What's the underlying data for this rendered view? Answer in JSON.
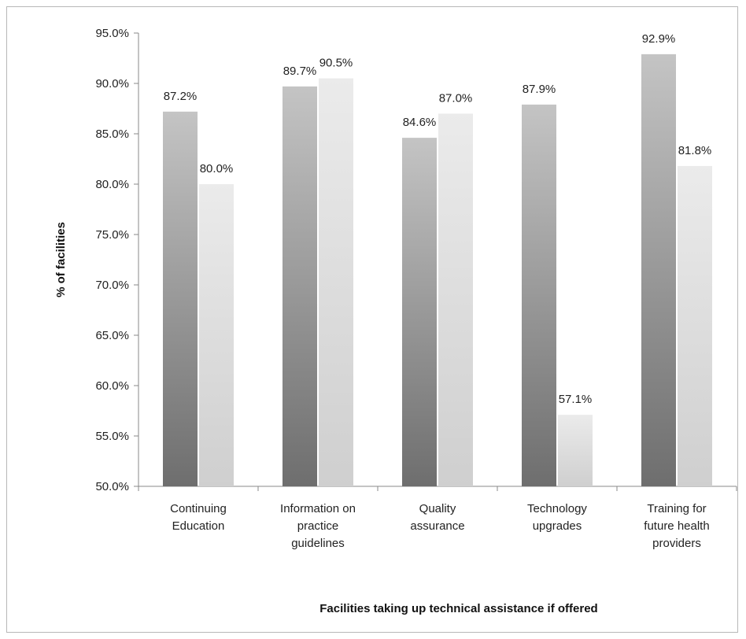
{
  "chart_data": {
    "type": "bar",
    "title": "",
    "xlabel": "Facilities taking up technical assistance if offered",
    "ylabel": "% of facilities",
    "ylim": [
      50,
      95
    ],
    "yticks": [
      50,
      55,
      60,
      65,
      70,
      75,
      80,
      85,
      90,
      95
    ],
    "ytick_labels": [
      "50.0%",
      "55.0%",
      "60.0%",
      "65.0%",
      "70.0%",
      "75.0%",
      "80.0%",
      "85.0%",
      "90.0%",
      "95.0%"
    ],
    "grid": false,
    "legend": "none",
    "categories": [
      [
        "Continuing",
        "Education"
      ],
      [
        "Information on",
        "practice",
        "guidelines"
      ],
      [
        "Quality",
        "assurance"
      ],
      [
        "Technology",
        "upgrades"
      ],
      [
        "Training for",
        "future health",
        "providers"
      ]
    ],
    "series": [
      {
        "values": [
          87.2,
          89.7,
          84.6,
          87.9,
          92.9
        ],
        "labels": [
          "87.2%",
          "89.7%",
          "84.6%",
          "87.9%",
          "92.9%"
        ],
        "color_top": "#c4c4c4",
        "color_bottom": "#6e6e6e"
      },
      {
        "values": [
          80.0,
          90.5,
          87.0,
          57.1,
          81.8
        ],
        "labels": [
          "80.0%",
          "90.5%",
          "87.0%",
          "57.1%",
          "81.8%"
        ],
        "color_top": "#ebebeb",
        "color_bottom": "#cfcfcf"
      }
    ]
  }
}
